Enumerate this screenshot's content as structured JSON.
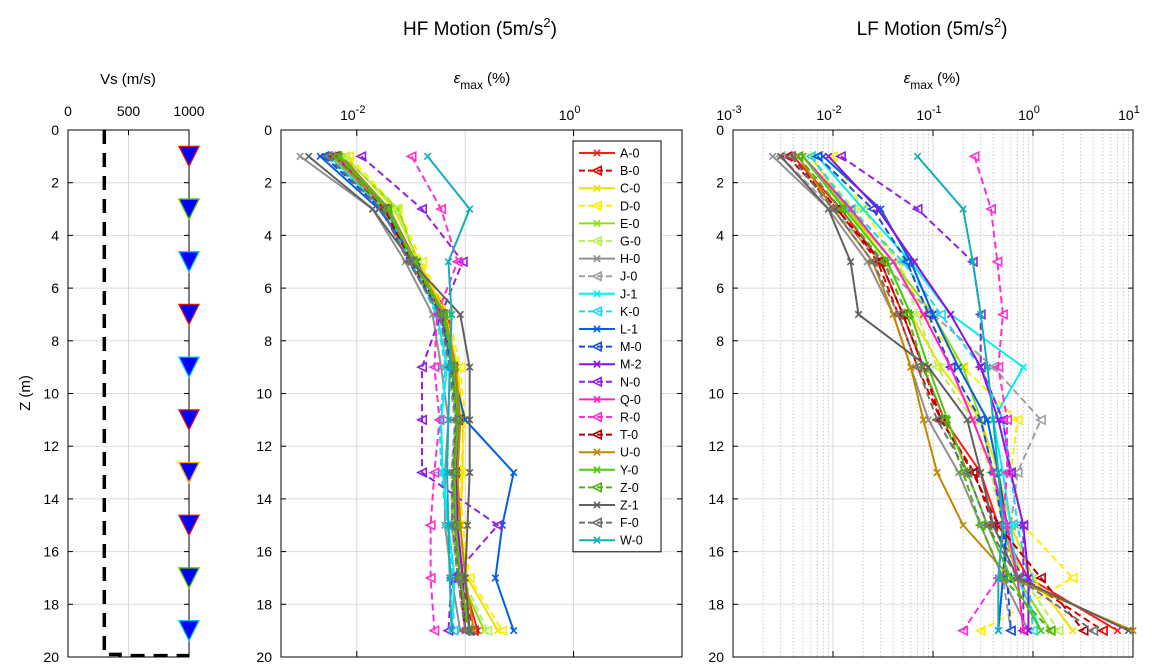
{
  "chart_data": [
    {
      "type": "line",
      "panel": "vs",
      "title": "",
      "xlabel": "Vs (m/s)",
      "ylabel": "Z (m)",
      "xlim": [
        0,
        1000
      ],
      "ylim": [
        0,
        20
      ],
      "xticks": [
        "0",
        "500",
        "1000"
      ],
      "yticks": [
        "0",
        "2",
        "4",
        "6",
        "8",
        "10",
        "12",
        "14",
        "16",
        "18",
        "20"
      ],
      "grid": true,
      "dashed_profile": {
        "name": "",
        "points": [
          [
            300,
            0
          ],
          [
            300,
            19.9
          ],
          [
            430,
            19.9
          ],
          [
            430,
            19.95
          ],
          [
            1000,
            19.95
          ]
        ]
      },
      "sensors": {
        "vs": 1000,
        "depths": [
          1,
          3,
          5,
          7,
          9,
          11,
          13,
          15,
          17,
          19
        ],
        "edge_colors": [
          "#e01010",
          "#40c000",
          "#00c0ff",
          "#e01010",
          "#00c0ff",
          "#e01010",
          "#ffa000",
          "#e01010",
          "#40c000",
          "#00c0ff"
        ]
      }
    },
    {
      "type": "line",
      "panel": "hf",
      "title": "HF Motion (5m/s²)",
      "title_main": "HF Motion (5m/s",
      "title_sup": "2",
      "title_end": ")",
      "xlabel_sym": "ε",
      "xlabel_sub": "max",
      "xlabel_unit": "(%)",
      "xscale": "log",
      "xlim": [
        0.002,
        10
      ],
      "xticks": [
        {
          "value": 0.01,
          "base": "10",
          "exp": "-2"
        },
        {
          "value": 1,
          "base": "10",
          "exp": "0"
        }
      ],
      "ylim": [
        0,
        20
      ],
      "yticks": [
        "0",
        "2",
        "4",
        "6",
        "8",
        "10",
        "12",
        "14",
        "16",
        "18",
        "20"
      ],
      "grid": true,
      "depths": [
        1,
        3,
        5,
        7,
        9,
        11,
        13,
        15,
        17,
        19
      ],
      "legend_position": "top-right",
      "series": [
        {
          "name": "A-0",
          "color": "#ff1c1c",
          "dash": false,
          "marker": "x",
          "values": [
            0.0072,
            0.02,
            0.035,
            0.07,
            0.08,
            0.09,
            0.085,
            0.085,
            0.095,
            0.13
          ]
        },
        {
          "name": "B-0",
          "color": "#dd0000",
          "dash": true,
          "marker": "tri",
          "values": [
            0.0064,
            0.018,
            0.033,
            0.065,
            0.075,
            0.085,
            0.08,
            0.08,
            0.09,
            0.12
          ]
        },
        {
          "name": "C-0",
          "color": "#f0e000",
          "dash": false,
          "marker": "x",
          "values": [
            0.008,
            0.022,
            0.038,
            0.066,
            0.085,
            0.095,
            0.095,
            0.09,
            0.105,
            0.2
          ]
        },
        {
          "name": "D-0",
          "color": "#ffee00",
          "dash": true,
          "marker": "tri",
          "values": [
            0.0085,
            0.024,
            0.04,
            0.07,
            0.09,
            0.1,
            0.09,
            0.095,
            0.11,
            0.22
          ]
        },
        {
          "name": "E-0",
          "color": "#8de010",
          "dash": false,
          "marker": "x",
          "values": [
            0.0075,
            0.024,
            0.036,
            0.06,
            0.075,
            0.082,
            0.078,
            0.075,
            0.09,
            0.15
          ]
        },
        {
          "name": "G-0",
          "color": "#b8f060",
          "dash": true,
          "marker": "tri",
          "values": [
            0.0078,
            0.023,
            0.036,
            0.064,
            0.078,
            0.085,
            0.08,
            0.08,
            0.095,
            0.16
          ]
        },
        {
          "name": "H-0",
          "color": "#909090",
          "dash": false,
          "marker": "x",
          "values": [
            0.003,
            0.014,
            0.028,
            0.05,
            0.06,
            0.07,
            0.065,
            0.065,
            0.075,
            0.09
          ]
        },
        {
          "name": "J-0",
          "color": "#a0a0a0",
          "dash": true,
          "marker": "tri",
          "values": [
            0.0058,
            0.017,
            0.031,
            0.058,
            0.07,
            0.08,
            0.075,
            0.075,
            0.085,
            0.1
          ]
        },
        {
          "name": "J-1",
          "color": "#00f0f0",
          "dash": false,
          "marker": "x",
          "values": [
            0.0056,
            0.018,
            0.034,
            0.055,
            0.068,
            0.06,
            0.062,
            0.07,
            0.08,
            0.075
          ]
        },
        {
          "name": "K-0",
          "color": "#20d8f0",
          "dash": true,
          "marker": "tri",
          "values": [
            0.0052,
            0.017,
            0.032,
            0.054,
            0.066,
            0.058,
            0.06,
            0.068,
            0.078,
            0.078
          ]
        },
        {
          "name": "L-1",
          "color": "#0060e0",
          "dash": false,
          "marker": "x",
          "values": [
            0.0046,
            0.016,
            0.036,
            0.06,
            0.075,
            0.1,
            0.28,
            0.22,
            0.19,
            0.28
          ]
        },
        {
          "name": "M-0",
          "color": "#1a50d8",
          "dash": true,
          "marker": "tri",
          "values": [
            0.005,
            0.017,
            0.03,
            0.06,
            0.075,
            0.085,
            0.08,
            0.08,
            0.09,
            0.11
          ]
        },
        {
          "name": "M-2",
          "color": "#9010e0",
          "dash": false,
          "marker": "x",
          "values": [
            0.0065,
            0.019,
            0.034,
            0.064,
            0.08,
            0.088,
            0.082,
            0.085,
            0.095,
            0.1
          ]
        },
        {
          "name": "N-0",
          "color": "#9020e0",
          "dash": true,
          "marker": "tri",
          "values": [
            0.011,
            0.04,
            0.095,
            0.06,
            0.04,
            0.04,
            0.04,
            0.2,
            0.075,
            0.07
          ]
        },
        {
          "name": "Q-0",
          "color": "#ff20c8",
          "dash": false,
          "marker": "x",
          "values": [
            0.0068,
            0.019,
            0.034,
            0.062,
            0.078,
            0.086,
            0.08,
            0.08,
            0.09,
            0.1
          ]
        },
        {
          "name": "R-0",
          "color": "#ff30d0",
          "dash": true,
          "marker": "tri",
          "values": [
            0.032,
            0.06,
            0.085,
            0.055,
            0.052,
            0.058,
            0.052,
            0.048,
            0.048,
            0.052
          ]
        },
        {
          "name": "T-0",
          "color": "#b00000",
          "dash": true,
          "marker": "tri",
          "values": [
            0.0062,
            0.018,
            0.032,
            0.062,
            0.077,
            0.086,
            0.08,
            0.08,
            0.09,
            0.1
          ]
        },
        {
          "name": "U-0",
          "color": "#c08a00",
          "dash": false,
          "marker": "x",
          "values": [
            0.006,
            0.019,
            0.035,
            0.065,
            0.082,
            0.09,
            0.085,
            0.09,
            0.1,
            0.12
          ]
        },
        {
          "name": "Y-0",
          "color": "#50c810",
          "dash": false,
          "marker": "x",
          "values": [
            0.007,
            0.02,
            0.034,
            0.064,
            0.078,
            0.086,
            0.08,
            0.082,
            0.09,
            0.11
          ]
        },
        {
          "name": "Z-0",
          "color": "#50b010",
          "dash": true,
          "marker": "tri",
          "values": [
            0.0066,
            0.019,
            0.033,
            0.062,
            0.076,
            0.084,
            0.078,
            0.08,
            0.09,
            0.105
          ]
        },
        {
          "name": "Z-1",
          "color": "#606060",
          "dash": false,
          "marker": "x",
          "values": [
            0.0036,
            0.014,
            0.032,
            0.09,
            0.11,
            0.11,
            0.11,
            0.105,
            0.1,
            0.11
          ]
        },
        {
          "name": "F-0",
          "color": "#707070",
          "dash": true,
          "marker": "tri",
          "values": [
            0.0054,
            0.017,
            0.03,
            0.058,
            0.072,
            0.082,
            0.076,
            0.076,
            0.086,
            0.1
          ]
        },
        {
          "name": "W-0",
          "color": "#10b0b8",
          "dash": false,
          "marker": "x",
          "values": [
            0.045,
            0.11,
            0.07,
            0.075,
            0.072,
            0.07,
            0.068,
            0.07,
            0.072,
            0.075
          ]
        }
      ]
    },
    {
      "type": "line",
      "panel": "lf",
      "title": "LF Motion (5m/s²)",
      "title_main": "LF Motion (5m/s",
      "title_sup": "2",
      "title_end": ")",
      "xlabel_sym": "ε",
      "xlabel_sub": "max",
      "xlabel_unit": "(%)",
      "xscale": "log",
      "xlim": [
        0.001,
        10
      ],
      "xticks": [
        {
          "value": 0.001,
          "base": "10",
          "exp": "-3"
        },
        {
          "value": 0.01,
          "base": "10",
          "exp": "-2"
        },
        {
          "value": 0.1,
          "base": "10",
          "exp": "-1"
        },
        {
          "value": 1,
          "base": "10",
          "exp": "0"
        },
        {
          "value": 10,
          "base": "10",
          "exp": "1"
        }
      ],
      "ylim": [
        0,
        20
      ],
      "yticks": [
        "0",
        "2",
        "4",
        "6",
        "8",
        "10",
        "12",
        "14",
        "16",
        "18",
        "20"
      ],
      "grid": true,
      "depths": [
        1,
        3,
        5,
        7,
        9,
        11,
        13,
        15,
        17,
        19
      ],
      "series": [
        {
          "name": "A-0",
          "color": "#ff1c1c",
          "dash": false,
          "marker": "x",
          "values": [
            0.004,
            0.012,
            0.03,
            0.05,
            0.08,
            0.13,
            0.3,
            0.45,
            0.9,
            7.0
          ]
        },
        {
          "name": "B-0",
          "color": "#dd0000",
          "dash": true,
          "marker": "tri",
          "values": [
            0.0035,
            0.011,
            0.028,
            0.045,
            0.07,
            0.12,
            0.26,
            0.4,
            0.8,
            5.0
          ]
        },
        {
          "name": "C-0",
          "color": "#f0e000",
          "dash": false,
          "marker": "x",
          "values": [
            0.006,
            0.014,
            0.035,
            0.06,
            0.12,
            0.3,
            0.45,
            0.6,
            1.0,
            2.5
          ]
        },
        {
          "name": "D-0",
          "color": "#ffee00",
          "dash": true,
          "marker": "tri",
          "values": [
            0.01,
            0.02,
            0.045,
            0.08,
            0.2,
            0.7,
            0.6,
            0.8,
            2.5,
            0.3
          ]
        },
        {
          "name": "E-0",
          "color": "#8de010",
          "dash": false,
          "marker": "x",
          "values": [
            0.005,
            0.014,
            0.04,
            0.1,
            0.2,
            0.3,
            0.4,
            0.5,
            0.7,
            1.5
          ]
        },
        {
          "name": "G-0",
          "color": "#b8f060",
          "dash": true,
          "marker": "tri",
          "values": [
            0.006,
            0.016,
            0.045,
            0.07,
            0.11,
            0.25,
            0.38,
            0.5,
            0.8,
            1.8
          ]
        },
        {
          "name": "H-0",
          "color": "#909090",
          "dash": false,
          "marker": "x",
          "values": [
            0.0025,
            0.009,
            0.022,
            0.04,
            0.06,
            0.09,
            0.18,
            0.3,
            0.5,
            0.9
          ]
        },
        {
          "name": "J-0",
          "color": "#a0a0a0",
          "dash": true,
          "marker": "tri",
          "values": [
            0.003,
            0.01,
            0.03,
            0.1,
            0.4,
            1.2,
            0.7,
            0.6,
            0.5,
            0.6
          ]
        },
        {
          "name": "J-1",
          "color": "#00f0f0",
          "dash": false,
          "marker": "x",
          "values": [
            0.007,
            0.02,
            0.06,
            0.15,
            0.8,
            0.4,
            0.5,
            0.6,
            0.7,
            1.2
          ]
        },
        {
          "name": "K-0",
          "color": "#20d8f0",
          "dash": true,
          "marker": "tri",
          "values": [
            0.006,
            0.015,
            0.05,
            0.12,
            0.3,
            0.5,
            0.6,
            0.7,
            0.9,
            1.0
          ]
        },
        {
          "name": "L-1",
          "color": "#0060e0",
          "dash": false,
          "marker": "x",
          "values": [
            0.008,
            0.03,
            0.06,
            0.1,
            0.18,
            0.35,
            0.45,
            0.55,
            0.5,
            0.45
          ]
        },
        {
          "name": "M-0",
          "color": "#1a50d8",
          "dash": true,
          "marker": "tri",
          "values": [
            0.007,
            0.025,
            0.055,
            0.09,
            0.15,
            0.3,
            0.4,
            0.5,
            0.55,
            0.6
          ]
        },
        {
          "name": "M-2",
          "color": "#9010e0",
          "dash": false,
          "marker": "x",
          "values": [
            0.009,
            0.028,
            0.065,
            0.15,
            0.3,
            0.45,
            0.6,
            0.8,
            0.9,
            0.9
          ]
        },
        {
          "name": "N-0",
          "color": "#9020e0",
          "dash": true,
          "marker": "tri",
          "values": [
            0.012,
            0.07,
            0.25,
            0.3,
            0.3,
            0.5,
            0.6,
            0.8,
            0.8,
            0.8
          ]
        },
        {
          "name": "Q-0",
          "color": "#ff20c8",
          "dash": false,
          "marker": "x",
          "values": [
            0.005,
            0.015,
            0.04,
            0.08,
            0.15,
            0.25,
            0.4,
            0.55,
            0.7,
            0.8
          ]
        },
        {
          "name": "R-0",
          "color": "#ff30d0",
          "dash": true,
          "marker": "tri",
          "values": [
            0.26,
            0.38,
            0.44,
            0.5,
            0.45,
            0.55,
            0.55,
            0.5,
            0.45,
            0.2
          ]
        },
        {
          "name": "T-0",
          "color": "#b00000",
          "dash": true,
          "marker": "tri",
          "values": [
            0.0038,
            0.011,
            0.03,
            0.05,
            0.08,
            0.12,
            0.25,
            0.45,
            1.2,
            3.2
          ]
        },
        {
          "name": "U-0",
          "color": "#c08a00",
          "dash": false,
          "marker": "x",
          "values": [
            0.0045,
            0.01,
            0.025,
            0.04,
            0.06,
            0.08,
            0.11,
            0.2,
            0.6,
            10.0
          ]
        },
        {
          "name": "Y-0",
          "color": "#50c810",
          "dash": false,
          "marker": "x",
          "values": [
            0.005,
            0.013,
            0.035,
            0.06,
            0.09,
            0.14,
            0.22,
            0.35,
            0.6,
            1.2
          ]
        },
        {
          "name": "Z-0",
          "color": "#50b010",
          "dash": true,
          "marker": "tri",
          "values": [
            0.0045,
            0.012,
            0.032,
            0.055,
            0.08,
            0.13,
            0.2,
            0.3,
            0.5,
            1.5
          ]
        },
        {
          "name": "Z-1",
          "color": "#606060",
          "dash": false,
          "marker": "x",
          "values": [
            0.003,
            0.009,
            0.015,
            0.018,
            0.09,
            0.22,
            0.3,
            0.4,
            0.7,
            9.0
          ]
        },
        {
          "name": "F-0",
          "color": "#707070",
          "dash": true,
          "marker": "tri",
          "values": [
            0.0038,
            0.01,
            0.025,
            0.045,
            0.07,
            0.11,
            0.22,
            0.35,
            0.7,
            4.0
          ]
        },
        {
          "name": "W-0",
          "color": "#10b0b8",
          "dash": false,
          "marker": "x",
          "values": [
            0.07,
            0.2,
            0.25,
            0.3,
            0.35,
            0.4,
            0.45,
            0.5,
            0.45,
            0.45
          ]
        }
      ]
    }
  ]
}
